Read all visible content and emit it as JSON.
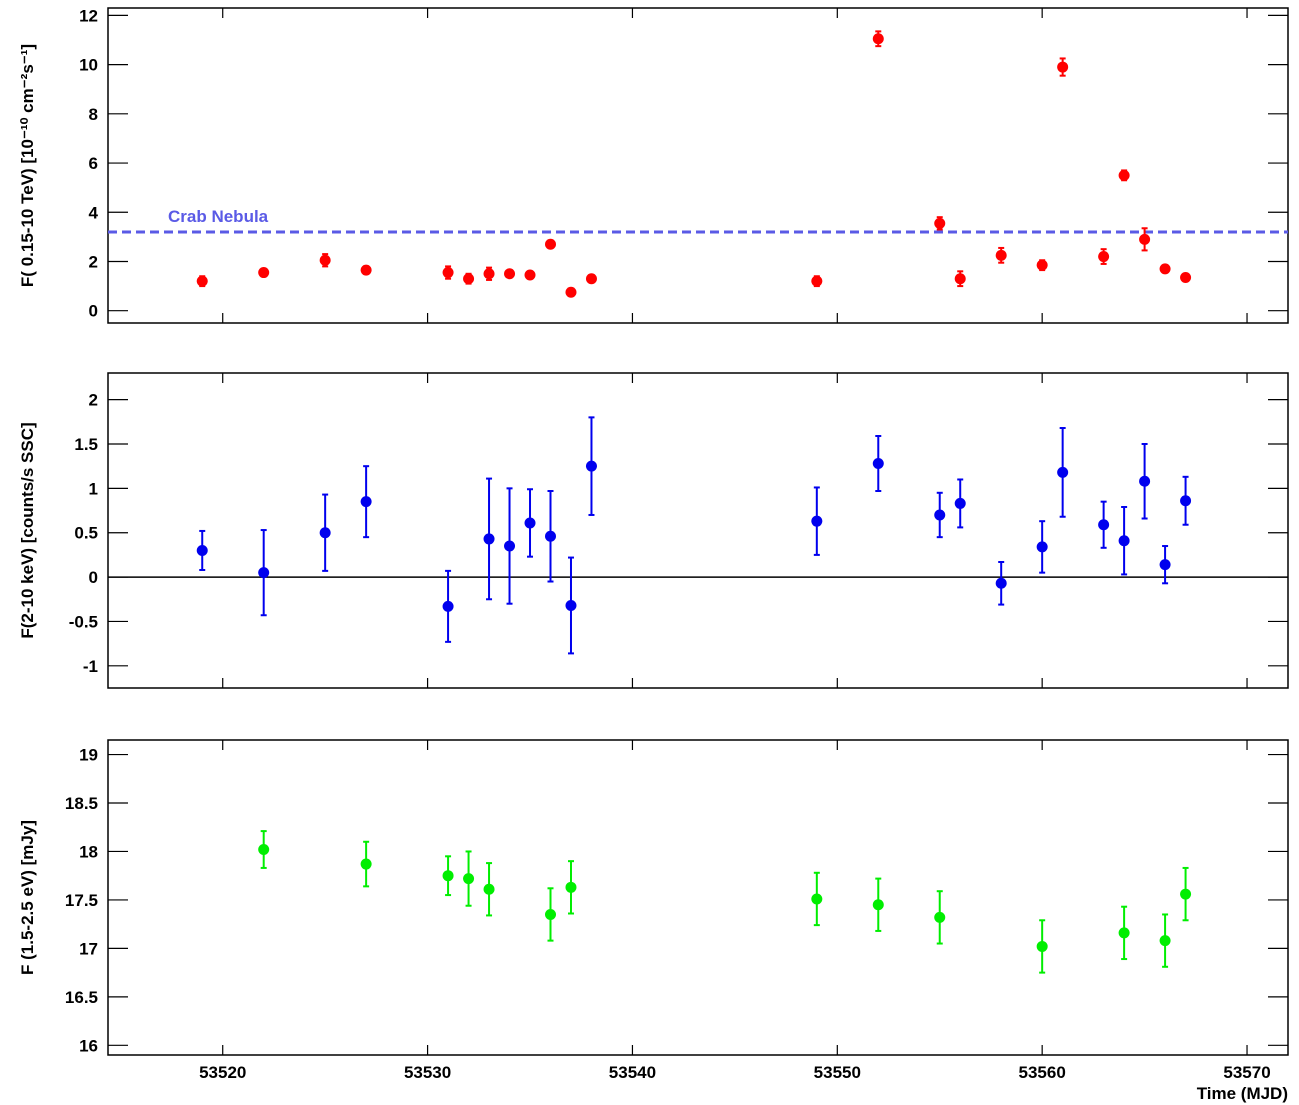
{
  "chart_data": [
    {
      "type": "scatter",
      "ylabel": "F( 0.15-10 TeV) [10⁻¹⁰ cm⁻²s⁻¹]",
      "xlim": [
        53514.4,
        53572
      ],
      "ylim": [
        -0.5,
        12.3
      ],
      "yticks": [
        0,
        2,
        4,
        6,
        8,
        10,
        12
      ],
      "reference_line": {
        "label": "Crab Nebula",
        "value": 3.2,
        "color": "#5a5ae6"
      },
      "series": [
        {
          "color": "#ff0000",
          "x": [
            53519,
            53522,
            53525,
            53527,
            53531,
            53532,
            53533,
            53534,
            53535,
            53536,
            53537,
            53538,
            53549,
            53552,
            53555,
            53556,
            53558,
            53560,
            53561,
            53563,
            53564,
            53565,
            53566,
            53567
          ],
          "values": [
            1.2,
            1.55,
            2.05,
            1.65,
            1.55,
            1.3,
            1.5,
            1.5,
            1.45,
            2.7,
            0.75,
            1.3,
            1.2,
            11.05,
            3.55,
            1.3,
            2.25,
            1.85,
            9.9,
            2.2,
            5.5,
            2.9,
            1.7,
            1.35
          ],
          "errors": [
            0.2,
            0.1,
            0.25,
            0.15,
            0.25,
            0.2,
            0.25,
            0.1,
            0.1,
            0.1,
            0.1,
            0.1,
            0.2,
            0.3,
            0.25,
            0.3,
            0.3,
            0.2,
            0.35,
            0.3,
            0.2,
            0.45,
            0.1,
            0.1
          ]
        }
      ]
    },
    {
      "type": "scatter",
      "ylabel": "F(2-10 keV) [counts/s SSC]",
      "xlim": [
        53514.4,
        53572
      ],
      "ylim": [
        -1.25,
        2.3
      ],
      "yticks": [
        {
          "value": -1,
          "label": "-1"
        },
        {
          "value": -0.5,
          "label": "-0.5"
        },
        0,
        0.5,
        1,
        1.5,
        2
      ],
      "zero_line": true,
      "series": [
        {
          "color": "#0000ee",
          "x": [
            53519,
            53522,
            53525,
            53527,
            53531,
            53533,
            53534,
            53535,
            53536,
            53537,
            53538,
            53549,
            53552,
            53555,
            53556,
            53558,
            53560,
            53561,
            53563,
            53564,
            53565,
            53566,
            53567
          ],
          "values": [
            0.3,
            0.05,
            0.5,
            0.85,
            -0.33,
            0.43,
            0.35,
            0.61,
            0.46,
            -0.32,
            1.25,
            0.63,
            1.28,
            0.7,
            0.83,
            -0.07,
            0.34,
            1.18,
            0.59,
            0.41,
            1.08,
            0.14,
            0.86
          ],
          "errors": [
            0.22,
            0.48,
            0.43,
            0.4,
            0.4,
            0.68,
            0.65,
            0.38,
            0.51,
            0.54,
            0.55,
            0.38,
            0.31,
            0.25,
            0.27,
            0.24,
            0.29,
            0.5,
            0.26,
            0.38,
            0.42,
            0.21,
            0.27
          ]
        }
      ]
    },
    {
      "type": "scatter",
      "ylabel": "F (1.5-2.5 eV) [mJy]",
      "xlabel": "Time (MJD)",
      "xlim": [
        53514.4,
        53572
      ],
      "xticks": [
        53520,
        53530,
        53540,
        53550,
        53560,
        53570
      ],
      "ylim": [
        15.9,
        19.15
      ],
      "yticks": [
        16,
        16.5,
        17,
        17.5,
        18,
        18.5,
        19
      ],
      "series": [
        {
          "color": "#00ee00",
          "x": [
            53522,
            53527,
            53531,
            53532,
            53533,
            53536,
            53537,
            53549,
            53552,
            53555,
            53560,
            53564,
            53566,
            53567
          ],
          "values": [
            18.02,
            17.87,
            17.75,
            17.72,
            17.61,
            17.35,
            17.63,
            17.51,
            17.45,
            17.32,
            17.02,
            17.16,
            17.08,
            17.56
          ],
          "errors": [
            0.19,
            0.23,
            0.2,
            0.28,
            0.27,
            0.27,
            0.27,
            0.27,
            0.27,
            0.27,
            0.27,
            0.27,
            0.27,
            0.27
          ]
        }
      ]
    }
  ]
}
